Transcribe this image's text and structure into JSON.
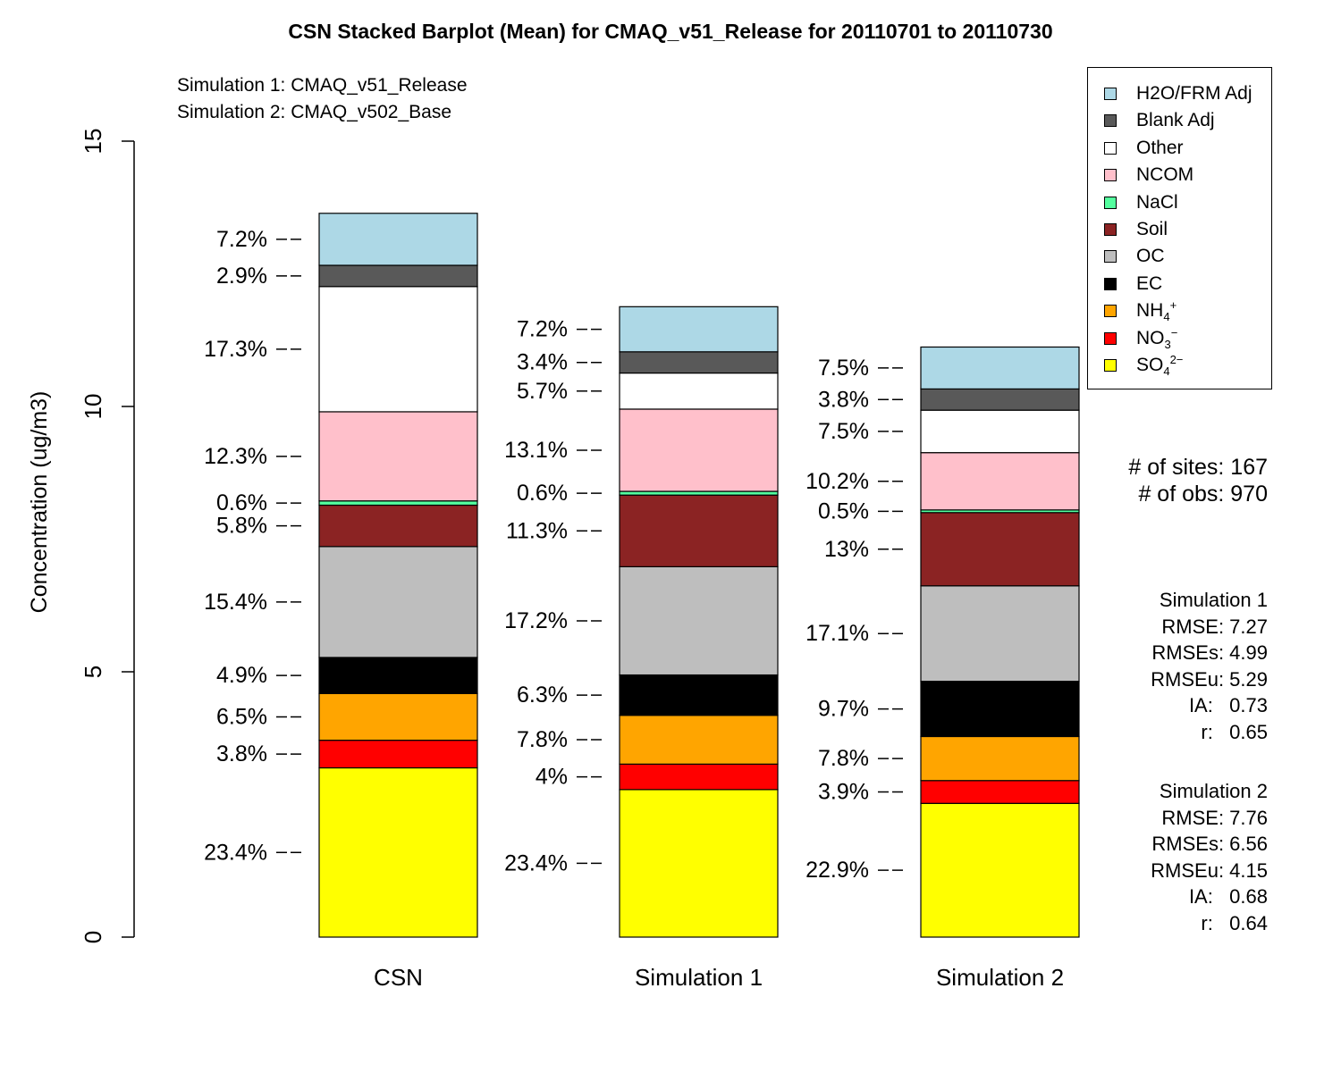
{
  "title": "CSN Stacked Barplot (Mean) for CMAQ_v51_Release for 20110701 to 20110730",
  "simulations": [
    "Simulation 1: CMAQ_v51_Release",
    "Simulation 2: CMAQ_v502_Base"
  ],
  "legend": [
    {
      "label": "H2O/FRM Adj",
      "color": "#add8e6"
    },
    {
      "label": "Blank Adj",
      "color": "#595959"
    },
    {
      "label": "Other",
      "color": "#ffffff"
    },
    {
      "label": "NCOM",
      "color": "#ffc0cb"
    },
    {
      "label": "NaCl",
      "color": "#54ff9f"
    },
    {
      "label": "Soil",
      "color": "#8b2323"
    },
    {
      "label": "OC",
      "color": "#bebebe"
    },
    {
      "label": "EC",
      "color": "#000000"
    },
    {
      "label": "NH4+",
      "color": "#ffa500"
    },
    {
      "label": "NO3−",
      "color": "#ff0000"
    },
    {
      "label": "SO42−",
      "color": "#ffff00"
    }
  ],
  "sites_text": "# of sites: 167",
  "obs_text": "# of obs: 970",
  "stats": [
    {
      "header": "Simulation 1",
      "lines": [
        "RMSE: 7.27",
        "RMSEs: 4.99",
        "RMSEu: 5.29",
        "IA:   0.73",
        "r:   0.65"
      ]
    },
    {
      "header": "Simulation 2",
      "lines": [
        "RMSE: 7.76",
        "RMSEs: 6.56",
        "RMSEu: 4.15",
        "IA:   0.68",
        "r:   0.64"
      ]
    }
  ],
  "chart_data": {
    "type": "bar",
    "stacked": true,
    "title": "CSN Stacked Barplot (Mean) for CMAQ_v51_Release for 20110701 to 20110730",
    "ylabel": "Concentration (ug/m3)",
    "ylim": [
      0,
      15
    ],
    "yticks": [
      0,
      5,
      10,
      15
    ],
    "categories": [
      "CSN",
      "Simulation 1",
      "Simulation 2"
    ],
    "legend_position": "top-right",
    "series": [
      {
        "name": "SO42−",
        "color": "#ffff00",
        "values": [
          3.19,
          2.78,
          2.52
        ],
        "labels": [
          "23.4%",
          "23.4%",
          "22.9%"
        ]
      },
      {
        "name": "NO3−",
        "color": "#ff0000",
        "values": [
          0.52,
          0.48,
          0.43
        ],
        "labels": [
          "3.8%",
          "4%",
          "3.9%"
        ]
      },
      {
        "name": "NH4+",
        "color": "#ffa500",
        "values": [
          0.88,
          0.92,
          0.83
        ],
        "labels": [
          "6.5%",
          "7.8%",
          "7.8%"
        ]
      },
      {
        "name": "EC",
        "color": "#000000",
        "values": [
          0.68,
          0.76,
          1.04
        ],
        "labels": [
          "4.9%",
          "6.3%",
          "9.7%"
        ]
      },
      {
        "name": "OC",
        "color": "#bebebe",
        "values": [
          2.09,
          2.04,
          1.8
        ],
        "labels": [
          "15.4%",
          "17.2%",
          "17.1%"
        ]
      },
      {
        "name": "Soil",
        "color": "#8b2323",
        "values": [
          0.78,
          1.35,
          1.38
        ],
        "labels": [
          "5.8%",
          "11.3%",
          "13%"
        ]
      },
      {
        "name": "NaCl",
        "color": "#54ff9f",
        "values": [
          0.08,
          0.07,
          0.05
        ],
        "labels": [
          "0.6%",
          "0.6%",
          "0.5%"
        ]
      },
      {
        "name": "NCOM",
        "color": "#ffc0cb",
        "values": [
          1.68,
          1.55,
          1.08
        ],
        "labels": [
          "12.3%",
          "13.1%",
          "10.2%"
        ]
      },
      {
        "name": "Other",
        "color": "#ffffff",
        "values": [
          2.36,
          0.68,
          0.8
        ],
        "labels": [
          "17.3%",
          "5.7%",
          "7.5%"
        ]
      },
      {
        "name": "Blank Adj",
        "color": "#595959",
        "values": [
          0.4,
          0.4,
          0.4
        ],
        "labels": [
          "2.9%",
          "3.4%",
          "3.8%"
        ]
      },
      {
        "name": "H2O/FRM Adj",
        "color": "#add8e6",
        "values": [
          0.98,
          0.85,
          0.79
        ],
        "labels": [
          "7.2%",
          "7.2%",
          "7.5%"
        ]
      }
    ]
  }
}
